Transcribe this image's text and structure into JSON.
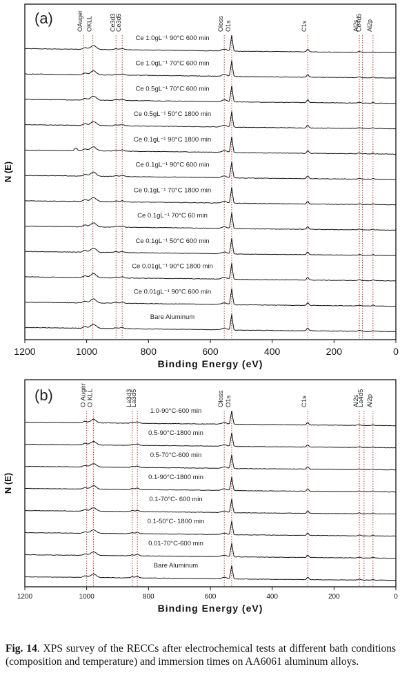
{
  "chart_data": [
    {
      "panel_label": "(a)",
      "type": "line",
      "xlabel": "Binding Energy (eV)",
      "ylabel": "N (E)",
      "xlim": [
        1200,
        0
      ],
      "x_reversed": true,
      "x_ticks": [
        1200,
        1000,
        800,
        600,
        400,
        200,
        0
      ],
      "peaks": [
        {
          "label": "OAuger",
          "x": 1010
        },
        {
          "label": "OKLL",
          "x": 980
        },
        {
          "label": "Ce3d3",
          "x": 905
        },
        {
          "label": "Ce3d5",
          "x": 885
        },
        {
          "label": "Oloss",
          "x": 555
        },
        {
          "label": "O1s",
          "x": 531
        },
        {
          "label": "C1s",
          "x": 285
        },
        {
          "label": "Al2s",
          "x": 118
        },
        {
          "label": "Ce4d5",
          "x": 108
        },
        {
          "label": "Al2p",
          "x": 74
        }
      ],
      "series": [
        {
          "name": "Ce 1.0gL⁻¹ 90°C 600 min"
        },
        {
          "name": "Ce 1.0gL⁻¹ 70°C 600 min"
        },
        {
          "name": "Ce 0.5gL⁻¹ 70°C 600 min"
        },
        {
          "name": "Ce 0.5gL⁻¹ 50°C 1800 min"
        },
        {
          "name": "Ce 0.1gL⁻¹ 90°C 1800 min"
        },
        {
          "name": "Ce 0.1gL⁻¹ 90°C 600 min"
        },
        {
          "name": "Ce 0.1gL⁻¹ 70°C 1800 min"
        },
        {
          "name": "Ce 0.1gL⁻¹ 70°C 60 min"
        },
        {
          "name": "Ce 0.1gL⁻¹ 50°C 600 min"
        },
        {
          "name": "Ce 0.01gL⁻¹ 90°C 1800 min"
        },
        {
          "name": "Ce 0.01gL⁻¹ 90°C 600 min"
        },
        {
          "name": "Bare Aluminum"
        }
      ]
    },
    {
      "panel_label": "(b)",
      "type": "line",
      "xlabel": "Binding Energy (eV)",
      "ylabel": "N (E)",
      "xlim": [
        1200,
        0
      ],
      "x_reversed": true,
      "x_ticks": [
        1200,
        1000,
        800,
        600,
        400,
        200,
        0
      ],
      "peaks": [
        {
          "label": "O Auger",
          "x": 1000
        },
        {
          "label": "O KLL",
          "x": 978
        },
        {
          "label": "La3d3",
          "x": 852
        },
        {
          "label": "La3d5",
          "x": 836
        },
        {
          "label": "Oloss",
          "x": 555
        },
        {
          "label": "O1s",
          "x": 531
        },
        {
          "label": "C1s",
          "x": 285
        },
        {
          "label": "Al2s",
          "x": 118
        },
        {
          "label": "La4d5",
          "x": 103
        },
        {
          "label": "Al2p",
          "x": 74
        }
      ],
      "series": [
        {
          "name": "1.0-90°C-600 min"
        },
        {
          "name": "0.5-90°C-1800 min"
        },
        {
          "name": "0.5-70°C-600 min"
        },
        {
          "name": "0.1-90°C-1800 min"
        },
        {
          "name": "0.1-70°C- 600 min"
        },
        {
          "name": "0.1-50°C- 1800 min"
        },
        {
          "name": "0.01-70°C-600 min"
        },
        {
          "name": "Bare Aluminum"
        }
      ]
    }
  ],
  "caption": {
    "label": "Fig. 14",
    "text": ". XPS survey of the RECCs after electrochemical tests at different bath conditions (composition and temperature) and immersion times on AA6061 aluminum alloys."
  }
}
